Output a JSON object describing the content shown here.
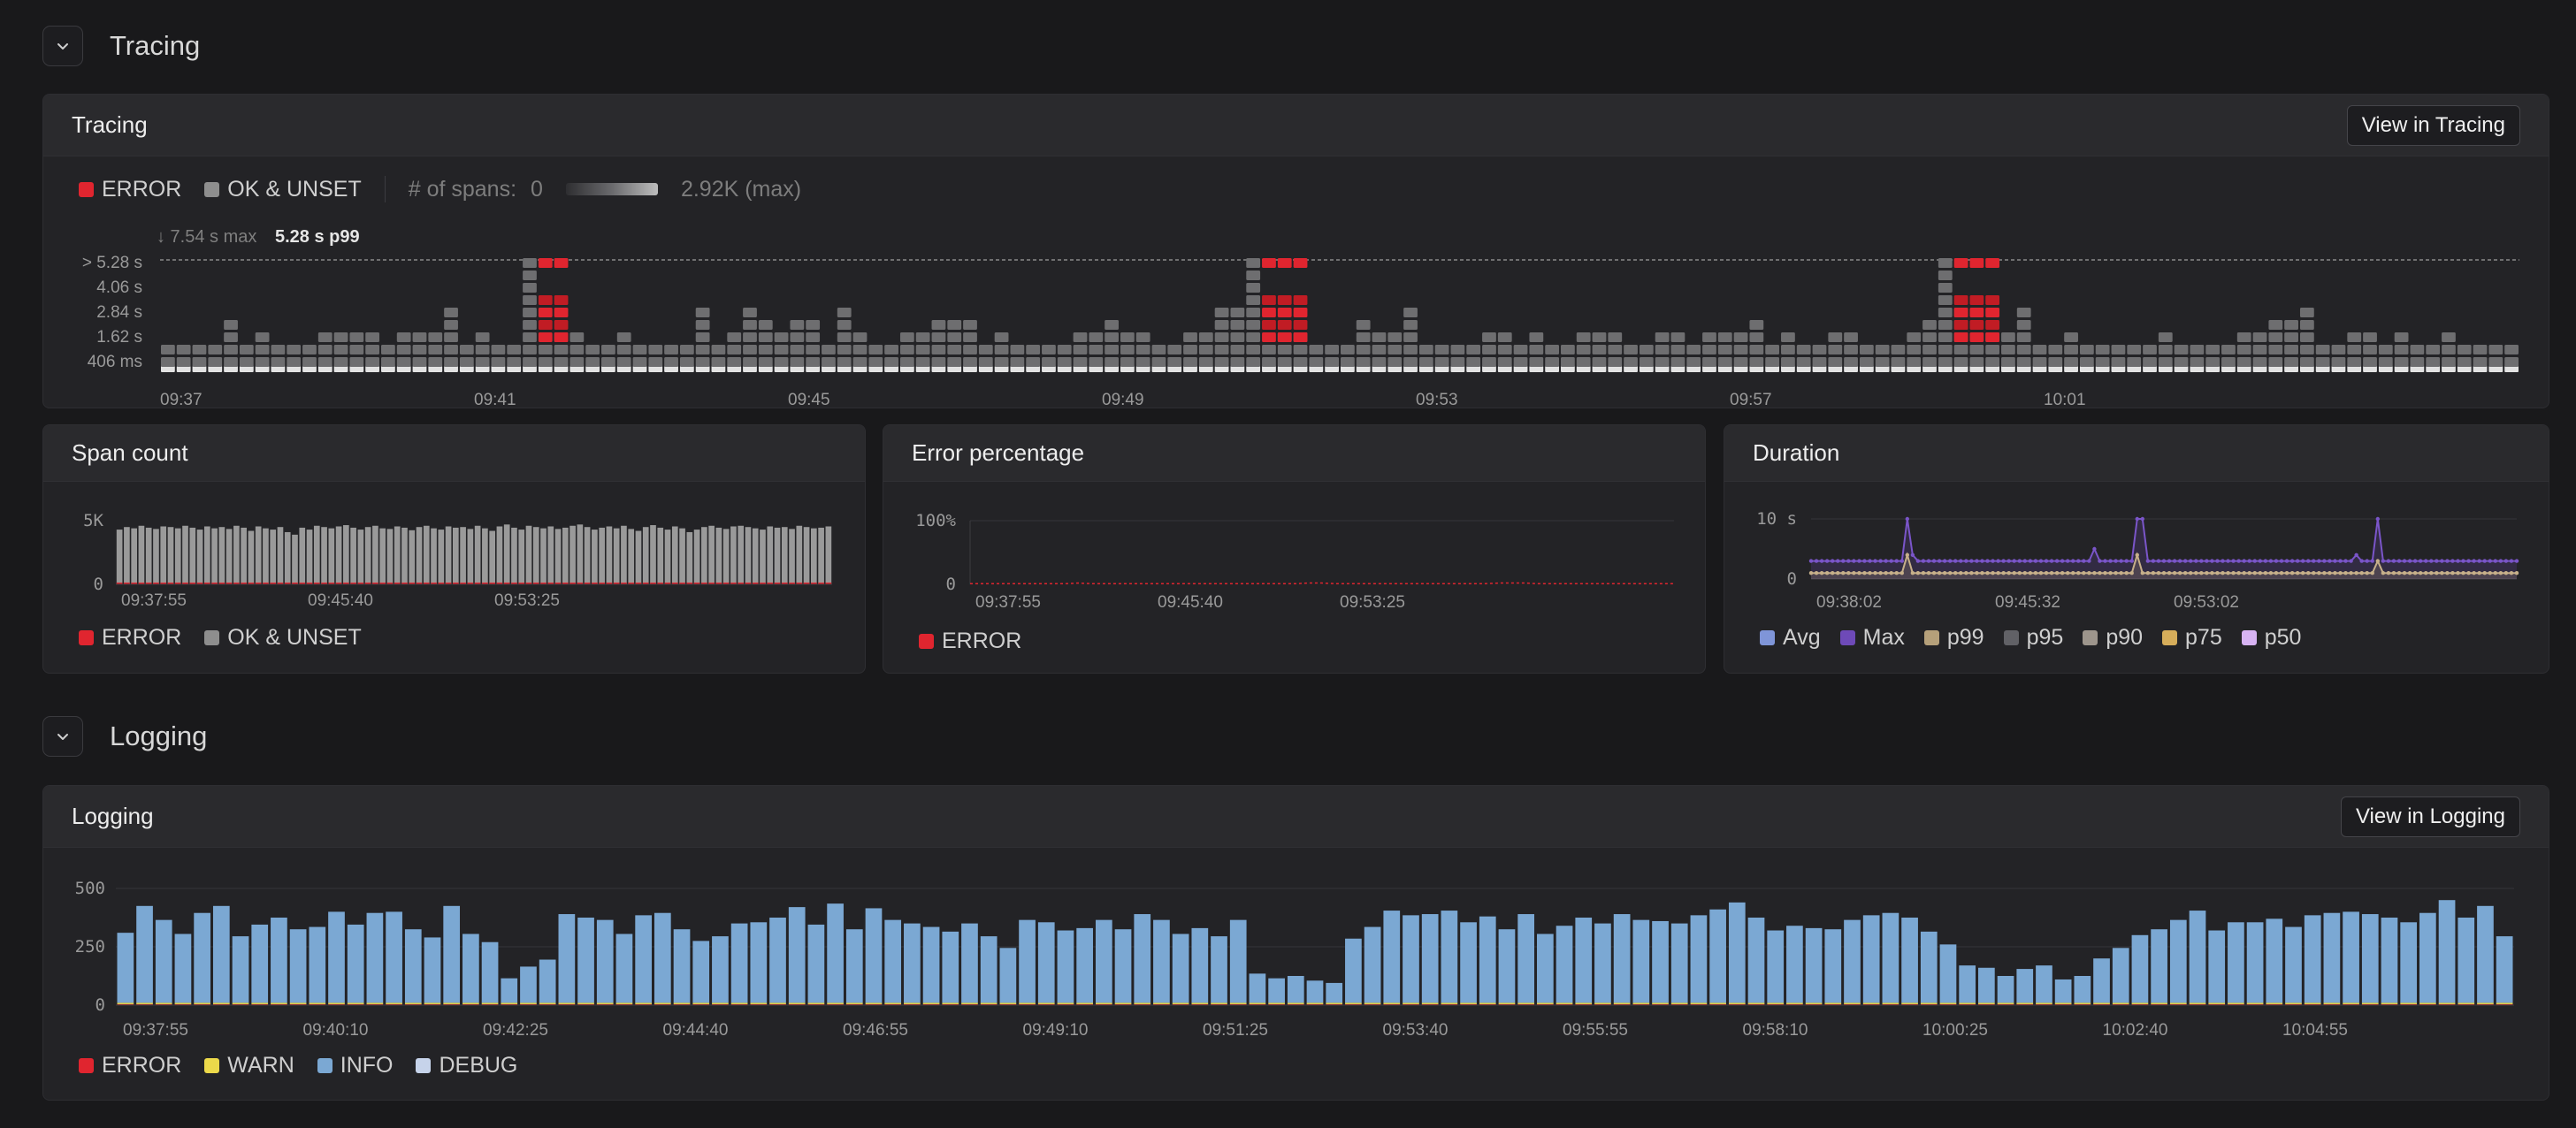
{
  "tracing_section": {
    "title": "Tracing"
  },
  "tracing_panel": {
    "title": "Tracing",
    "view_button": "View in Tracing",
    "legend": {
      "error": "ERROR",
      "ok": "OK & UNSET",
      "spans_label": "# of spans:",
      "spans_min": "0",
      "spans_max": "2.92K (max)"
    },
    "max_label": "↓ 7.54 s max",
    "p99_label": "5.28 s p99",
    "colors": {
      "error": "#e0252f",
      "ok": "#8e8e8e",
      "cell": "#6b6b6b",
      "cell_light": "#dddddd"
    }
  },
  "span_panel": {
    "title": "Span count",
    "legend": {
      "error": "ERROR",
      "ok": "OK & UNSET"
    }
  },
  "error_panel": {
    "title": "Error percentage",
    "legend": {
      "error": "ERROR"
    }
  },
  "duration_panel": {
    "title": "Duration",
    "legend": [
      "Avg",
      "Max",
      "p99",
      "p95",
      "p90",
      "p75",
      "p50"
    ],
    "legend_colors": [
      "#7f95d8",
      "#6e4ab8",
      "#b5a07a",
      "#616166",
      "#9d958c",
      "#d6ad5a",
      "#d7b3f3"
    ]
  },
  "logging_section": {
    "title": "Logging"
  },
  "logging_panel": {
    "title": "Logging",
    "view_button": "View in Logging",
    "legend": {
      "error": "ERROR",
      "warn": "WARN",
      "info": "INFO",
      "debug": "DEBUG"
    },
    "colors": {
      "error": "#e0252f",
      "warn": "#ecd94a",
      "info": "#7ba8d3",
      "debug": "#c6d3ea"
    }
  },
  "chart_data": [
    {
      "type": "heatmap",
      "name": "Tracing",
      "x_ticks": [
        "09:37",
        "09:41",
        "09:45",
        "09:49",
        "09:53",
        "09:57",
        "10:01"
      ],
      "y_ticks": [
        "> 5.28 s",
        "4.06 s",
        "2.84 s",
        "1.62 s",
        "406 ms"
      ],
      "hot_x_fraction": [
        0.16,
        0.47,
        0.765
      ],
      "tall_ok_columns": [
        0.155,
        0.46,
        0.755
      ]
    },
    {
      "type": "bar",
      "name": "Span count",
      "x_ticks": [
        "09:37:55",
        "09:45:40",
        "09:53:25"
      ],
      "y_ticks": [
        "5K",
        "0"
      ],
      "ylim": [
        0,
        5000
      ],
      "values": [
        4300,
        4500,
        4400,
        4600,
        4450,
        4350,
        4550,
        4500,
        4400,
        4600,
        4450,
        4300,
        4550,
        4400,
        4500,
        4350,
        4600,
        4450,
        4200,
        4550,
        4400,
        4300,
        4500,
        4100,
        3900,
        4450,
        4300,
        4600,
        4500,
        4400,
        4550,
        4650,
        4450,
        4300,
        4500,
        4600,
        4400,
        4350,
        4550,
        4450,
        4250,
        4500,
        4600,
        4400,
        4300,
        4550,
        4450,
        4500,
        4350,
        4600,
        4400,
        4200,
        4550,
        4700,
        4450,
        4300,
        4600,
        4500,
        4400,
        4550,
        4350,
        4450,
        4600,
        4700,
        4500,
        4300,
        4450,
        4550,
        4400,
        4600,
        4350,
        4200,
        4500,
        4650,
        4450,
        4300,
        4550,
        4400,
        4100,
        4300,
        4500,
        4600,
        4450,
        4350,
        4550,
        4600,
        4500,
        4400,
        4300,
        4550,
        4450,
        4500,
        4350,
        4600,
        4500,
        4400,
        4450,
        4550
      ]
    },
    {
      "type": "line",
      "name": "Error percentage",
      "x_ticks": [
        "09:37:55",
        "09:45:40",
        "09:53:25"
      ],
      "y_ticks": [
        "100%",
        "0"
      ],
      "ylim": [
        0,
        100
      ],
      "series": [
        {
          "name": "ERROR",
          "values": [
            1,
            1,
            1,
            1,
            1,
            1,
            1,
            1,
            2,
            1,
            1,
            1,
            1,
            1,
            1,
            1,
            1,
            1,
            1,
            1,
            1,
            1,
            1,
            1,
            1,
            2,
            2,
            1,
            1,
            1,
            1,
            1,
            1,
            1,
            1,
            1,
            1,
            1,
            1,
            2,
            2,
            2,
            1,
            1,
            1,
            1,
            1,
            1,
            1,
            1,
            1,
            1,
            1
          ]
        }
      ]
    },
    {
      "type": "line",
      "name": "Duration",
      "x_ticks": [
        "09:38:02",
        "09:45:32",
        "09:53:02"
      ],
      "y_ticks": [
        "10 s",
        "0"
      ],
      "ylim": [
        0,
        10
      ],
      "series": [
        {
          "name": "Max",
          "values": [
            3,
            3,
            3,
            3,
            3,
            3,
            3,
            3,
            3,
            3,
            3,
            3,
            3,
            3,
            3,
            3,
            3,
            3,
            10,
            4,
            3,
            3,
            3,
            3,
            3,
            3,
            3,
            3,
            3,
            3,
            3,
            3,
            3,
            3,
            3,
            3,
            3,
            3,
            3,
            3,
            3,
            3,
            3,
            3,
            3,
            3,
            3,
            3,
            3,
            3,
            3,
            3,
            3,
            5,
            3,
            3,
            3,
            3,
            3,
            3,
            3,
            10,
            10,
            3,
            3,
            3,
            3,
            3,
            3,
            3,
            3,
            3,
            3,
            3,
            3,
            3,
            3,
            3,
            3,
            3,
            3,
            3,
            3,
            3,
            3,
            3,
            3,
            3,
            3,
            3,
            3,
            3,
            3,
            3,
            3,
            3,
            3,
            3,
            3,
            3,
            3,
            3,
            4,
            3,
            3,
            3,
            10,
            3,
            3,
            3,
            3,
            3,
            3,
            3,
            3,
            3,
            3,
            3,
            3,
            3,
            3,
            3,
            3,
            3,
            3,
            3,
            3,
            3,
            3,
            3,
            3,
            3,
            3
          ]
        },
        {
          "name": "p99",
          "values": [
            1,
            1,
            1,
            1,
            1,
            1,
            1,
            1,
            1,
            1,
            1,
            1,
            1,
            1,
            1,
            1,
            1,
            1,
            4,
            1,
            1,
            1,
            1,
            1,
            1,
            1,
            1,
            1,
            1,
            1,
            1,
            1,
            1,
            1,
            1,
            1,
            1,
            1,
            1,
            1,
            1,
            1,
            1,
            1,
            1,
            1,
            1,
            1,
            1,
            1,
            1,
            1,
            1,
            1,
            1,
            1,
            1,
            1,
            1,
            1,
            1,
            4,
            1,
            1,
            1,
            1,
            1,
            1,
            1,
            1,
            1,
            1,
            1,
            1,
            1,
            1,
            1,
            1,
            1,
            1,
            1,
            1,
            1,
            1,
            1,
            1,
            1,
            1,
            1,
            1,
            1,
            1,
            1,
            1,
            1,
            1,
            1,
            1,
            1,
            1,
            1,
            1,
            1,
            1,
            1,
            1,
            3,
            1,
            1,
            1,
            1,
            1,
            1,
            1,
            1,
            1,
            1,
            1,
            1,
            1,
            1,
            1,
            1,
            1,
            1,
            1,
            1,
            1,
            1,
            1,
            1,
            1,
            1
          ]
        }
      ]
    },
    {
      "type": "bar",
      "name": "Logging",
      "x_ticks": [
        "09:37:55",
        "09:40:10",
        "09:42:25",
        "09:44:40",
        "09:46:55",
        "09:49:10",
        "09:51:25",
        "09:53:40",
        "09:55:55",
        "09:58:10",
        "10:00:25",
        "10:02:40",
        "10:04:55"
      ],
      "y_ticks": [
        "500",
        "250",
        "0"
      ],
      "ylim": [
        0,
        500
      ],
      "series": [
        {
          "name": "INFO",
          "values": [
            300,
            415,
            355,
            295,
            385,
            415,
            285,
            335,
            365,
            315,
            325,
            390,
            335,
            385,
            390,
            315,
            280,
            415,
            295,
            260,
            105,
            155,
            185,
            380,
            365,
            355,
            295,
            375,
            385,
            315,
            265,
            285,
            340,
            345,
            365,
            410,
            335,
            425,
            315,
            405,
            355,
            340,
            325,
            305,
            340,
            285,
            235,
            355,
            345,
            310,
            320,
            355,
            315,
            380,
            355,
            295,
            320,
            285,
            355,
            125,
            105,
            115,
            95,
            85,
            275,
            325,
            395,
            375,
            380,
            395,
            345,
            370,
            315,
            380,
            295,
            330,
            365,
            340,
            380,
            355,
            350,
            340,
            375,
            400,
            430,
            365,
            310,
            330,
            320,
            315,
            355,
            375,
            385,
            365,
            305,
            250,
            160,
            150,
            115,
            145,
            160,
            100,
            115,
            190,
            235,
            290,
            315,
            355,
            395,
            310,
            345,
            345,
            360,
            325,
            375,
            385,
            390,
            380,
            365,
            345,
            385,
            440,
            365,
            415,
            285
          ]
        },
        {
          "name": "WARN",
          "values": [
            6
          ]
        },
        {
          "name": "ERROR",
          "values": [
            4
          ]
        }
      ]
    }
  ]
}
